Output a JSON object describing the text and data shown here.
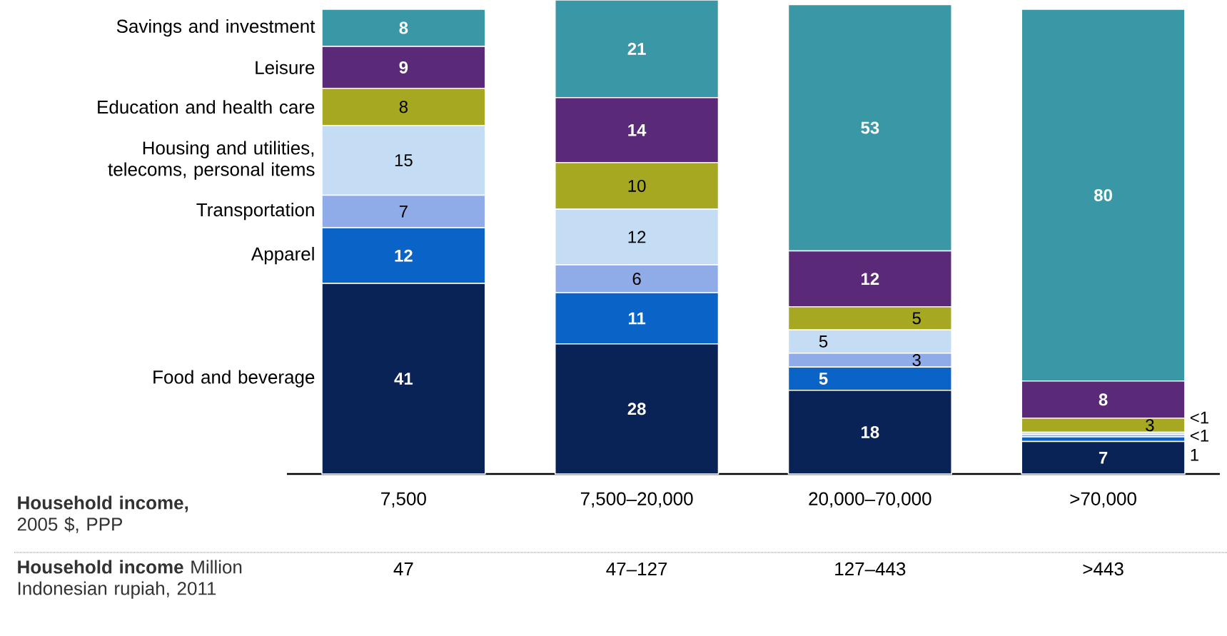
{
  "chart_data": {
    "type": "bar",
    "stacked": true,
    "data_labels": true,
    "categories": [
      "7,500",
      "7,500–20,000",
      "20,000–70,000",
      ">70,000"
    ],
    "series": [
      {
        "name": "Food and beverage",
        "color": "#0a2357",
        "values": [
          41,
          28,
          18,
          7
        ]
      },
      {
        "name": "Apparel",
        "color": "#0a64c8",
        "values": [
          12,
          11,
          5,
          1
        ]
      },
      {
        "name": "Transportation",
        "color": "#8fabe8",
        "values": [
          7,
          6,
          3,
          0.5
        ],
        "value_labels": [
          "7",
          "6",
          "3",
          "<1"
        ]
      },
      {
        "name": "Housing and utilities, telecoms, personal items",
        "color": "#c5dcf5",
        "values": [
          15,
          12,
          5,
          0.5
        ],
        "value_labels": [
          "15",
          "12",
          "5",
          "<1"
        ]
      },
      {
        "name": "Education and health care",
        "color": "#a5a820",
        "values": [
          8,
          10,
          5,
          3
        ]
      },
      {
        "name": "Leisure",
        "color": "#5a2a78",
        "values": [
          9,
          14,
          12,
          8
        ]
      },
      {
        "name": "Savings and investment",
        "color": "#3a97a6",
        "values": [
          8,
          21,
          53,
          80
        ]
      }
    ],
    "annotations": [
      "**Household income,** 2005 $, PPP",
      "**Household income** Million Indonesian rupiah, 2011",
      "47",
      "47–127",
      "127–443",
      ">443"
    ]
  }
}
